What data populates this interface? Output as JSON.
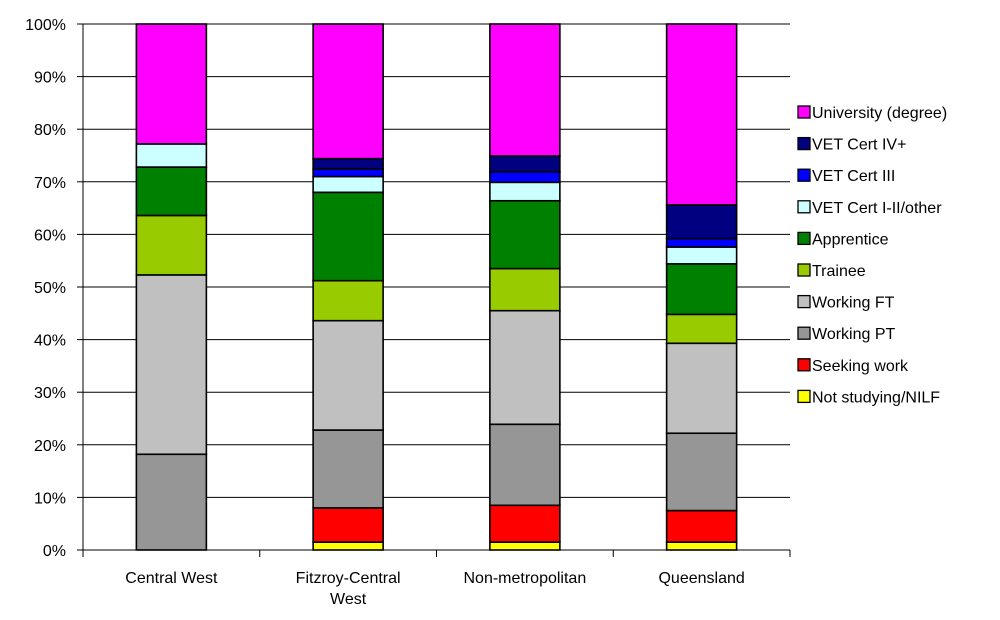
{
  "chart_data": {
    "type": "bar",
    "stacked": true,
    "percent": true,
    "categories": [
      "Central West",
      "Fitzroy-Central West",
      "Non-metropolitan",
      "Queensland"
    ],
    "category_lines": [
      [
        "Central West"
      ],
      [
        "Fitzroy-Central",
        "West"
      ],
      [
        "Non-metropolitan"
      ],
      [
        "Queensland"
      ]
    ],
    "series": [
      {
        "name": "Not studying/NILF",
        "color": "#FFFF00",
        "values": [
          0,
          1.5,
          1.5,
          1.5
        ]
      },
      {
        "name": "Seeking work",
        "color": "#FF0000",
        "values": [
          0,
          6.5,
          7.0,
          6.0
        ]
      },
      {
        "name": "Working PT",
        "color": "#969696",
        "values": [
          18.2,
          14.8,
          15.4,
          14.7
        ]
      },
      {
        "name": "Working FT",
        "color": "#C0C0C0",
        "values": [
          34.1,
          20.8,
          21.6,
          17.1
        ]
      },
      {
        "name": "Trainee",
        "color": "#99CC00",
        "values": [
          11.3,
          7.6,
          8.0,
          5.5
        ]
      },
      {
        "name": "Apprentice",
        "color": "#008000",
        "values": [
          9.2,
          16.8,
          12.9,
          9.6
        ]
      },
      {
        "name": "VET Cert I-II/other",
        "color": "#CCFFFF",
        "values": [
          4.4,
          3.0,
          3.5,
          3.2
        ]
      },
      {
        "name": "VET Cert III",
        "color": "#0000FF",
        "values": [
          0,
          1.4,
          2.0,
          1.6
        ]
      },
      {
        "name": "VET Cert IV+",
        "color": "#000080",
        "values": [
          0,
          2.0,
          3.0,
          6.4
        ]
      },
      {
        "name": "University (degree)",
        "color": "#FF00FF",
        "values": [
          22.8,
          25.6,
          25.1,
          34.4
        ]
      }
    ],
    "y_ticks": [
      "0%",
      "10%",
      "20%",
      "30%",
      "40%",
      "50%",
      "60%",
      "70%",
      "80%",
      "90%",
      "100%"
    ],
    "ylim": [
      0,
      100
    ],
    "legend_position": "right",
    "grid": true
  }
}
